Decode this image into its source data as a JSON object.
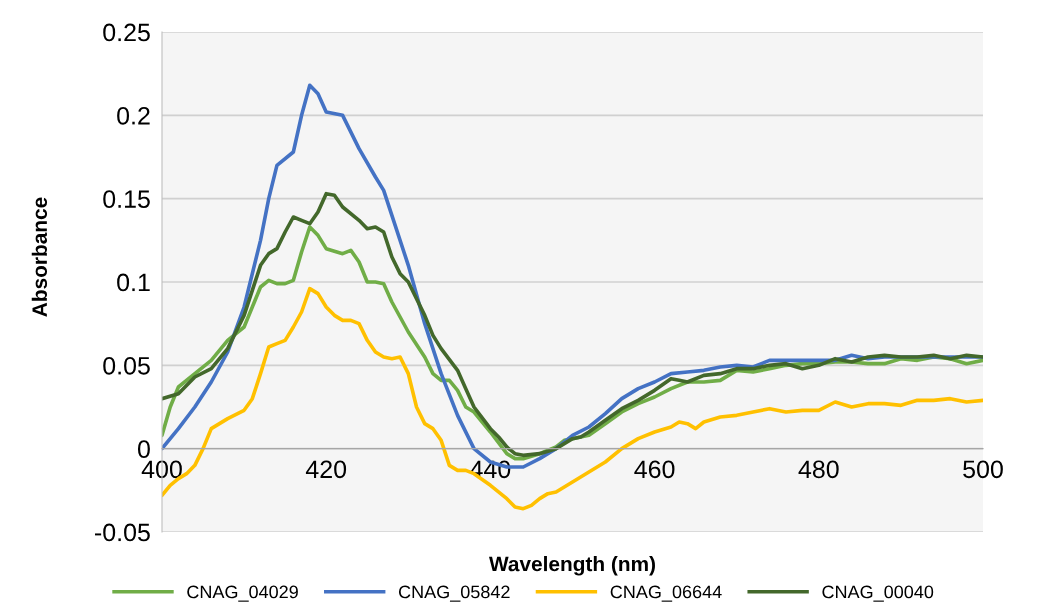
{
  "chart_data": {
    "type": "line",
    "xlabel": "Wavelength (nm)",
    "ylabel": "Absorbance",
    "xlim": [
      400,
      500
    ],
    "xticks": [
      400,
      420,
      440,
      460,
      480,
      500
    ],
    "ylim": [
      -0.05,
      0.25
    ],
    "yticks": [
      -0.05,
      0,
      0.05,
      0.1,
      0.15,
      0.2,
      0.25
    ],
    "grid": "y",
    "legend": "bottom",
    "line_style": "solid",
    "marker": "none",
    "series": [
      {
        "name": "CNAG_04029",
        "color": "#70ad47",
        "x": [
          400,
          401,
          402,
          404,
          406,
          408,
          410,
          411,
          412,
          413,
          414,
          415,
          416,
          417,
          418,
          419,
          420,
          422,
          423,
          424,
          425,
          426,
          427,
          428,
          430,
          432,
          433,
          434,
          435,
          436,
          437,
          438,
          440,
          442,
          443,
          444,
          446,
          448,
          449,
          450,
          452,
          454,
          456,
          458,
          460,
          462,
          464,
          466,
          468,
          470,
          472,
          474,
          476,
          478,
          480,
          482,
          484,
          486,
          488,
          490,
          492,
          494,
          496,
          498,
          500
        ],
        "values": [
          0.008,
          0.025,
          0.037,
          0.045,
          0.053,
          0.065,
          0.073,
          0.085,
          0.097,
          0.101,
          0.099,
          0.099,
          0.101,
          0.118,
          0.133,
          0.128,
          0.12,
          0.117,
          0.119,
          0.112,
          0.1,
          0.1,
          0.099,
          0.088,
          0.07,
          0.055,
          0.045,
          0.041,
          0.041,
          0.035,
          0.025,
          0.022,
          0.01,
          -0.003,
          -0.006,
          -0.006,
          -0.003,
          0.001,
          0.005,
          0.006,
          0.008,
          0.015,
          0.022,
          0.027,
          0.031,
          0.036,
          0.04,
          0.04,
          0.041,
          0.047,
          0.046,
          0.048,
          0.05,
          0.051,
          0.051,
          0.052,
          0.052,
          0.051,
          0.051,
          0.054,
          0.053,
          0.055,
          0.054,
          0.051,
          0.053
        ]
      },
      {
        "name": "CNAG_05842",
        "color": "#4472c4",
        "x": [
          400,
          402,
          404,
          406,
          408,
          410,
          412,
          413,
          414,
          416,
          417,
          418,
          419,
          420,
          422,
          424,
          426,
          427,
          428,
          430,
          432,
          434,
          436,
          438,
          440,
          442,
          444,
          446,
          448,
          450,
          452,
          454,
          456,
          458,
          460,
          462,
          464,
          466,
          468,
          470,
          472,
          474,
          476,
          478,
          480,
          482,
          484,
          486,
          488,
          490,
          492,
          494,
          496,
          498,
          500
        ],
        "values": [
          0.0,
          0.012,
          0.025,
          0.04,
          0.058,
          0.085,
          0.125,
          0.15,
          0.17,
          0.178,
          0.2,
          0.218,
          0.213,
          0.202,
          0.2,
          0.18,
          0.163,
          0.155,
          0.14,
          0.11,
          0.075,
          0.045,
          0.02,
          0.0,
          -0.008,
          -0.011,
          -0.011,
          -0.006,
          0.0,
          0.008,
          0.013,
          0.021,
          0.03,
          0.036,
          0.04,
          0.045,
          0.046,
          0.047,
          0.049,
          0.05,
          0.049,
          0.053,
          0.053,
          0.053,
          0.053,
          0.053,
          0.056,
          0.054,
          0.055,
          0.055,
          0.055,
          0.055,
          0.055,
          0.055,
          0.055
        ]
      },
      {
        "name": "CNAG_06644",
        "color": "#ffc000",
        "x": [
          400,
          401,
          402,
          403,
          404,
          405,
          406,
          408,
          410,
          411,
          412,
          413,
          414,
          415,
          416,
          417,
          418,
          419,
          420,
          421,
          422,
          423,
          424,
          425,
          426,
          427,
          428,
          429,
          430,
          431,
          432,
          433,
          434,
          435,
          436,
          437,
          438,
          440,
          442,
          443,
          444,
          445,
          446,
          447,
          448,
          450,
          452,
          454,
          456,
          458,
          460,
          462,
          463,
          464,
          465,
          466,
          468,
          470,
          472,
          474,
          476,
          478,
          480,
          482,
          484,
          486,
          488,
          490,
          492,
          494,
          496,
          498,
          500
        ],
        "values": [
          -0.028,
          -0.022,
          -0.018,
          -0.015,
          -0.01,
          0.0,
          0.012,
          0.018,
          0.023,
          0.03,
          0.045,
          0.061,
          0.063,
          0.065,
          0.073,
          0.082,
          0.096,
          0.093,
          0.085,
          0.08,
          0.077,
          0.077,
          0.075,
          0.065,
          0.058,
          0.055,
          0.054,
          0.055,
          0.045,
          0.025,
          0.015,
          0.012,
          0.005,
          -0.01,
          -0.013,
          -0.013,
          -0.015,
          -0.022,
          -0.03,
          -0.035,
          -0.036,
          -0.034,
          -0.03,
          -0.027,
          -0.026,
          -0.02,
          -0.014,
          -0.008,
          0.0,
          0.006,
          0.01,
          0.013,
          0.016,
          0.015,
          0.012,
          0.016,
          0.019,
          0.02,
          0.022,
          0.024,
          0.022,
          0.023,
          0.023,
          0.028,
          0.025,
          0.027,
          0.027,
          0.026,
          0.029,
          0.029,
          0.03,
          0.028,
          0.029
        ]
      },
      {
        "name": "CNAG_00040",
        "color": "#43682b",
        "x": [
          400,
          402,
          404,
          406,
          408,
          410,
          411,
          412,
          413,
          414,
          415,
          416,
          417,
          418,
          419,
          420,
          421,
          422,
          424,
          425,
          426,
          427,
          428,
          429,
          430,
          432,
          433,
          434,
          436,
          437,
          438,
          440,
          441,
          442,
          443,
          444,
          446,
          448,
          450,
          451,
          452,
          454,
          456,
          458,
          460,
          462,
          463,
          464,
          466,
          468,
          470,
          472,
          474,
          476,
          478,
          480,
          482,
          484,
          486,
          488,
          490,
          492,
          494,
          496,
          498,
          500
        ],
        "values": [
          0.03,
          0.033,
          0.043,
          0.048,
          0.06,
          0.08,
          0.095,
          0.11,
          0.117,
          0.12,
          0.13,
          0.139,
          0.137,
          0.135,
          0.142,
          0.153,
          0.152,
          0.145,
          0.137,
          0.132,
          0.133,
          0.13,
          0.115,
          0.105,
          0.1,
          0.08,
          0.068,
          0.06,
          0.047,
          0.036,
          0.025,
          0.012,
          0.007,
          0.001,
          -0.003,
          -0.004,
          -0.003,
          0.0,
          0.006,
          0.007,
          0.01,
          0.017,
          0.024,
          0.029,
          0.035,
          0.042,
          0.041,
          0.04,
          0.044,
          0.045,
          0.048,
          0.048,
          0.05,
          0.051,
          0.048,
          0.05,
          0.054,
          0.052,
          0.055,
          0.056,
          0.055,
          0.055,
          0.056,
          0.054,
          0.056,
          0.055
        ]
      }
    ]
  }
}
